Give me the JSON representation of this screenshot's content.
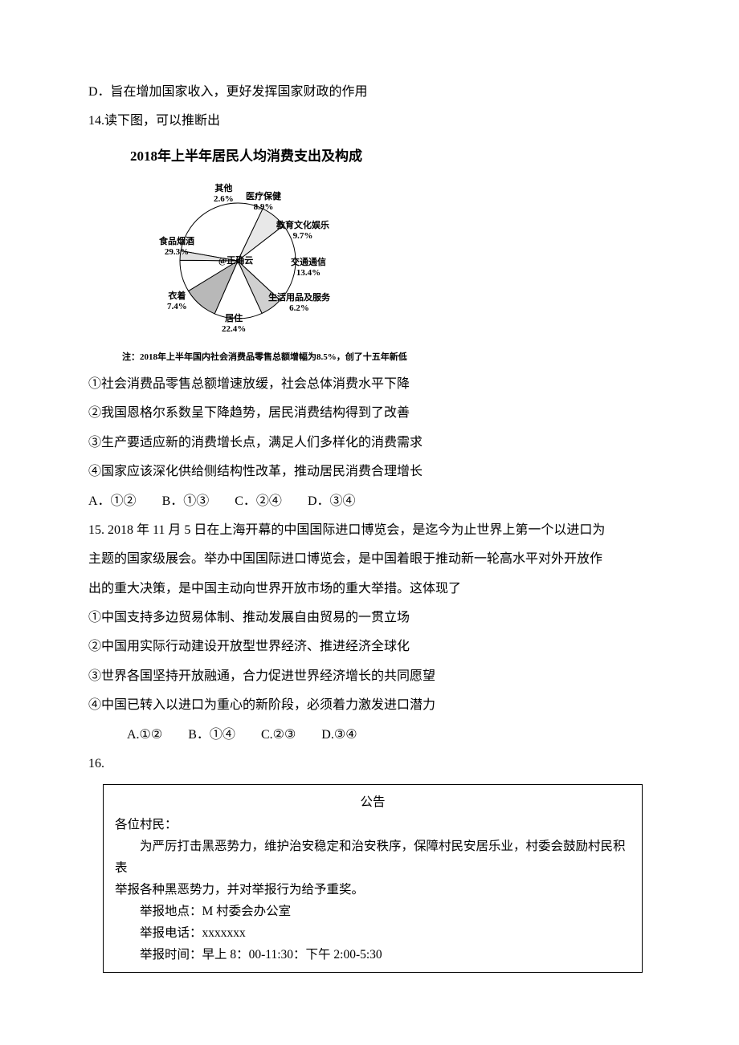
{
  "q13": {
    "optD": "D．旨在增加国家收入，更好发挥国家财政的作用"
  },
  "q14": {
    "stem": "14.读下图，可以推断出",
    "chart": {
      "type": "pie",
      "title": "2018年上半年居民人均消费支出及构成",
      "slices": [
        {
          "label": "食品烟酒",
          "value": 29.3,
          "display": "29.3%",
          "color": "#ffffff"
        },
        {
          "label": "衣着",
          "value": 7.4,
          "display": "7.4%",
          "color": "#e8e8e8"
        },
        {
          "label": "居住",
          "value": 22.4,
          "display": "22.4%",
          "color": "#ffffff"
        },
        {
          "label": "生活用品及服务",
          "value": 6.2,
          "display": "6.2%",
          "color": "#d0d0d0"
        },
        {
          "label": "交通通信",
          "value": 13.4,
          "display": "13.4%",
          "color": "#ffffff"
        },
        {
          "label": "教育文化娱乐",
          "value": 9.7,
          "display": "9.7%",
          "color": "#b8b8b8"
        },
        {
          "label": "医疗保健",
          "value": 8.9,
          "display": "8.9%",
          "color": "#ffffff"
        },
        {
          "label": "其他",
          "value": 2.6,
          "display": "2.6%",
          "color": "#e0e0e0"
        }
      ],
      "center_text": "@正确云",
      "stroke_color": "#000000",
      "background_color": "#ffffff",
      "note": "注：2018年上半年国内社会消费品零售总额增幅为8.5%，创了十五年新低"
    },
    "s1": "①社会消费品零售总额增速放缓，社会总体消费水平下降",
    "s2": "②我国恩格尔系数呈下降趋势，居民消费结构得到了改善",
    "s3": "③生产要适应新的消费增长点，满足人们多样化的消费需求",
    "s4": "④国家应该深化供给侧结构性改革，推动居民消费合理增长",
    "optA": "A．①②",
    "optB": "B．①③",
    "optC": "C．②④",
    "optD": "D．③④"
  },
  "q15": {
    "l1": "15. 2018 年 11 月 5 日在上海开幕的中国国际进口博览会，是迄今为止世界上第一个以进口为",
    "l2": "主题的国家级展会。举办中国国际进口博览会，是中国着眼于推动新一轮高水平对外开放作",
    "l3": "出的重大决策，是中国主动向世界开放市场的重大举措。这体现了",
    "s1": "①中国支持多边贸易体制、推动发展自由贸易的一贯立场",
    "s2": "②中国用实际行动建设开放型世界经济、推进经济全球化",
    "s3": "③世界各国坚持开放融通，合力促进世界经济增长的共同愿望",
    "s4": "④中国已转入以进口为重心的新阶段，必须着力激发进口潜力",
    "optA": "A.①②",
    "optB": "B．①④",
    "optC": "C.②③",
    "optD": "D.③④"
  },
  "q16": {
    "num": "16.",
    "notice": {
      "title": "公告",
      "addr": "各位村民：",
      "b1": "为严厉打击黑恶势力，维护治安稳定和治安秩序，保障村民安居乐业，村委会鼓励村民积表",
      "b2": "举报各种黑恶势力，并对举报行为给予重奖。",
      "r1": "举报地点：M 村委会办公室",
      "r2": "举报电话：xxxxxxx",
      "r3": "举报时间：早上 8：00-11:30：下午 2:00-5:30"
    }
  }
}
